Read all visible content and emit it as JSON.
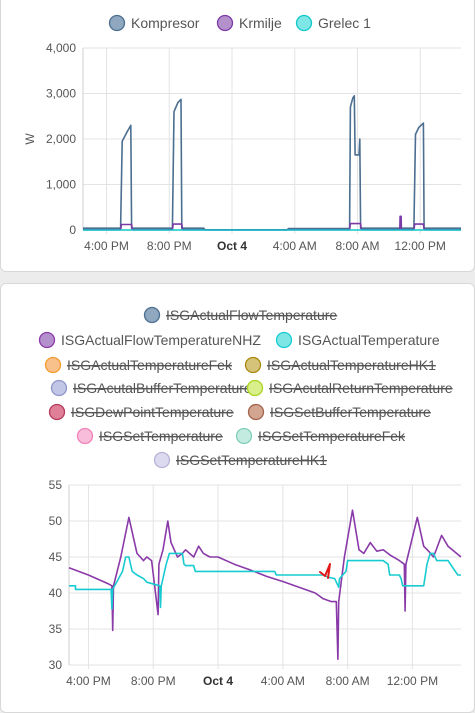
{
  "chart_data": [
    {
      "type": "line",
      "ylabel": "W",
      "ylim": [
        0,
        4000
      ],
      "yticks": [
        0,
        1000,
        2000,
        3000,
        4000
      ],
      "y_tick_labels": [
        "0",
        "1,000",
        "2,000",
        "3,000",
        "4,000"
      ],
      "x_tick_labels": [
        "4:00 PM",
        "8:00 PM",
        "Oct 4",
        "4:00 AM",
        "8:00 AM",
        "12:00 PM"
      ],
      "x_tick_hours": [
        0,
        4,
        8,
        12,
        16,
        20
      ],
      "xlim_hours": [
        -1.5,
        22.6
      ],
      "grid": true,
      "legend_position": "top",
      "series": [
        {
          "name": "Kompresor",
          "color": "#4b6e91",
          "fill": "#8fa7bf",
          "hidden": false,
          "points": [
            [
              -1.5,
              40
            ],
            [
              0.9,
              40
            ],
            [
              1.0,
              1950
            ],
            [
              1.3,
              2150
            ],
            [
              1.55,
              2300
            ],
            [
              1.6,
              40
            ],
            [
              4.2,
              40
            ],
            [
              4.3,
              2600
            ],
            [
              4.55,
              2800
            ],
            [
              4.75,
              2870
            ],
            [
              4.8,
              40
            ],
            [
              6.2,
              40
            ],
            [
              6.3,
              0
            ],
            [
              11.5,
              0
            ],
            [
              11.6,
              30
            ],
            [
              15.5,
              30
            ],
            [
              15.55,
              2700
            ],
            [
              15.7,
              2900
            ],
            [
              15.8,
              2950
            ],
            [
              15.85,
              1650
            ],
            [
              16.1,
              1650
            ],
            [
              16.15,
              2000
            ],
            [
              16.2,
              40
            ],
            [
              19.6,
              40
            ],
            [
              19.7,
              2100
            ],
            [
              19.9,
              2250
            ],
            [
              20.2,
              2350
            ],
            [
              20.25,
              40
            ],
            [
              22.6,
              40
            ]
          ]
        },
        {
          "name": "Krmilje",
          "color": "#7c3aa6",
          "fill": "#b490cc",
          "hidden": false,
          "points": [
            [
              -1.5,
              5
            ],
            [
              0.9,
              5
            ],
            [
              0.95,
              120
            ],
            [
              1.6,
              120
            ],
            [
              1.65,
              5
            ],
            [
              4.2,
              5
            ],
            [
              4.25,
              130
            ],
            [
              4.8,
              130
            ],
            [
              4.85,
              5
            ],
            [
              15.5,
              5
            ],
            [
              15.55,
              140
            ],
            [
              16.2,
              140
            ],
            [
              16.25,
              5
            ],
            [
              18.7,
              5
            ],
            [
              18.72,
              300
            ],
            [
              18.78,
              300
            ],
            [
              18.8,
              5
            ],
            [
              19.6,
              5
            ],
            [
              19.65,
              130
            ],
            [
              20.2,
              130
            ],
            [
              20.25,
              5
            ],
            [
              22.6,
              5
            ]
          ]
        },
        {
          "name": "Grelec 1",
          "color": "#10c8c8",
          "fill": "#7fe6e6",
          "hidden": false,
          "points": [
            [
              -1.5,
              0
            ],
            [
              22.6,
              0
            ]
          ]
        }
      ]
    },
    {
      "type": "line",
      "ylim": [
        30,
        55
      ],
      "yticks": [
        30,
        35,
        40,
        45,
        50,
        55
      ],
      "y_tick_labels": [
        "30",
        "35",
        "40",
        "45",
        "50",
        "55"
      ],
      "x_tick_labels": [
        "4:00 PM",
        "8:00 PM",
        "Oct 4",
        "4:00 AM",
        "8:00 AM",
        "12:00 PM"
      ],
      "x_tick_hours": [
        0,
        4,
        8,
        12,
        16,
        20
      ],
      "xlim_hours": [
        -1.2,
        23.0
      ],
      "grid": true,
      "legend_position": "top",
      "series": [
        {
          "name": "ISGActualFlowTemperature",
          "color": "#4b6e91",
          "fill": "#8fa7bf",
          "hidden": true,
          "points": []
        },
        {
          "name": "ISGActualFlowTemperatureNHZ",
          "color": "#8a3aa8",
          "fill": "#b490cc",
          "hidden": false,
          "points": [
            [
              -1.2,
              43.5
            ],
            [
              0.0,
              42.5
            ],
            [
              1.2,
              41.3
            ],
            [
              1.45,
              41
            ],
            [
              1.5,
              34.8
            ],
            [
              1.55,
              41
            ],
            [
              2.0,
              45
            ],
            [
              2.5,
              50.5
            ],
            [
              3.0,
              45.5
            ],
            [
              3.4,
              44.5
            ],
            [
              3.6,
              45
            ],
            [
              3.9,
              44.5
            ],
            [
              4.3,
              37
            ],
            [
              4.35,
              44
            ],
            [
              4.6,
              46
            ],
            [
              4.9,
              50
            ],
            [
              5.1,
              47
            ],
            [
              5.5,
              45
            ],
            [
              5.8,
              45.5
            ],
            [
              6.0,
              46
            ],
            [
              6.5,
              45
            ],
            [
              6.8,
              46.5
            ],
            [
              7.1,
              45.5
            ],
            [
              7.5,
              45
            ],
            [
              8.0,
              45
            ],
            [
              9.0,
              44
            ],
            [
              10.0,
              43.2
            ],
            [
              11.0,
              42.3
            ],
            [
              12.0,
              41.6
            ],
            [
              13.0,
              40.8
            ],
            [
              14.0,
              40
            ],
            [
              14.5,
              39.2
            ],
            [
              15.0,
              38.8
            ],
            [
              15.3,
              38.8
            ],
            [
              15.4,
              30.8
            ],
            [
              15.45,
              38.8
            ],
            [
              15.8,
              45
            ],
            [
              16.3,
              51.5
            ],
            [
              16.7,
              46
            ],
            [
              17.0,
              45.5
            ],
            [
              17.4,
              47
            ],
            [
              17.8,
              45.8
            ],
            [
              18.2,
              46
            ],
            [
              18.6,
              45.3
            ],
            [
              19.2,
              44.5
            ],
            [
              19.5,
              44
            ],
            [
              19.55,
              37.5
            ],
            [
              19.6,
              44
            ],
            [
              20.3,
              50.5
            ],
            [
              20.7,
              46.5
            ],
            [
              21.0,
              45.8
            ],
            [
              21.3,
              45
            ],
            [
              21.8,
              48
            ],
            [
              22.2,
              46.5
            ],
            [
              23.0,
              45
            ]
          ]
        },
        {
          "name": "ISGActualTemperature",
          "color": "#17cbd0",
          "fill": "#7fe6e6",
          "hidden": false,
          "points": [
            [
              -1.2,
              41
            ],
            [
              -0.8,
              41
            ],
            [
              -0.8,
              40.5
            ],
            [
              1.4,
              40.5
            ],
            [
              1.45,
              37.8
            ],
            [
              1.5,
              40.5
            ],
            [
              2.1,
              43
            ],
            [
              2.3,
              45
            ],
            [
              2.5,
              45
            ],
            [
              2.7,
              43
            ],
            [
              3.0,
              42.5
            ],
            [
              3.4,
              42
            ],
            [
              3.6,
              41.5
            ],
            [
              4.4,
              41
            ],
            [
              4.45,
              38
            ],
            [
              4.5,
              41
            ],
            [
              4.8,
              44
            ],
            [
              5.0,
              45.5
            ],
            [
              5.8,
              45.5
            ],
            [
              5.9,
              44
            ],
            [
              6.0,
              43.8
            ],
            [
              6.5,
              43.8
            ],
            [
              6.6,
              43
            ],
            [
              11.5,
              43
            ],
            [
              11.6,
              42.5
            ],
            [
              14.5,
              42.5
            ],
            [
              14.8,
              42.2
            ],
            [
              15.2,
              42
            ],
            [
              15.45,
              40.8
            ],
            [
              15.5,
              42
            ],
            [
              15.9,
              43
            ],
            [
              16.0,
              44.5
            ],
            [
              18.2,
              44.5
            ],
            [
              18.5,
              44
            ],
            [
              18.6,
              42.5
            ],
            [
              19.2,
              42.5
            ],
            [
              19.3,
              42
            ],
            [
              19.4,
              41
            ],
            [
              20.7,
              41
            ],
            [
              20.9,
              44
            ],
            [
              21.1,
              45.5
            ],
            [
              21.3,
              45.5
            ],
            [
              21.5,
              44.5
            ],
            [
              22.2,
              44.5
            ],
            [
              22.5,
              43.5
            ],
            [
              22.8,
              42.5
            ],
            [
              23.0,
              42.5
            ]
          ]
        },
        {
          "name": "ISGActualTemperatureFek",
          "color": "#f59a2c",
          "fill": "#f8c08a",
          "hidden": true,
          "points": []
        },
        {
          "name": "ISGActualTemperatureHK1",
          "color": "#a8890c",
          "fill": "#d6c37a",
          "hidden": true,
          "points": []
        },
        {
          "name": "ISGAcutalBufferTemperature",
          "color": "#8f97c9",
          "fill": "#c1c6e6",
          "hidden": true,
          "points": []
        },
        {
          "name": "ISGAcutalReturnTemperature",
          "color": "#a9d41f",
          "fill": "#d9ef8c",
          "hidden": true,
          "points": []
        },
        {
          "name": "ISGDewPointTemperature",
          "color": "#b23a5a",
          "fill": "#e07f98",
          "hidden": true,
          "points": []
        },
        {
          "name": "ISGSetBufferTemperature",
          "color": "#a3634b",
          "fill": "#d2a591",
          "hidden": true,
          "points": []
        },
        {
          "name": "ISGSetTemperature",
          "color": "#f080b8",
          "fill": "#f8bddb",
          "hidden": true,
          "points": []
        },
        {
          "name": "ISGSetTemperatureFek",
          "color": "#7fcfb9",
          "fill": "#c4ebdf",
          "hidden": true,
          "points": []
        },
        {
          "name": "ISGSetTemperatureHK1",
          "color": "#b7b3d8",
          "fill": "#dcdaee",
          "hidden": true,
          "points": []
        }
      ]
    }
  ]
}
